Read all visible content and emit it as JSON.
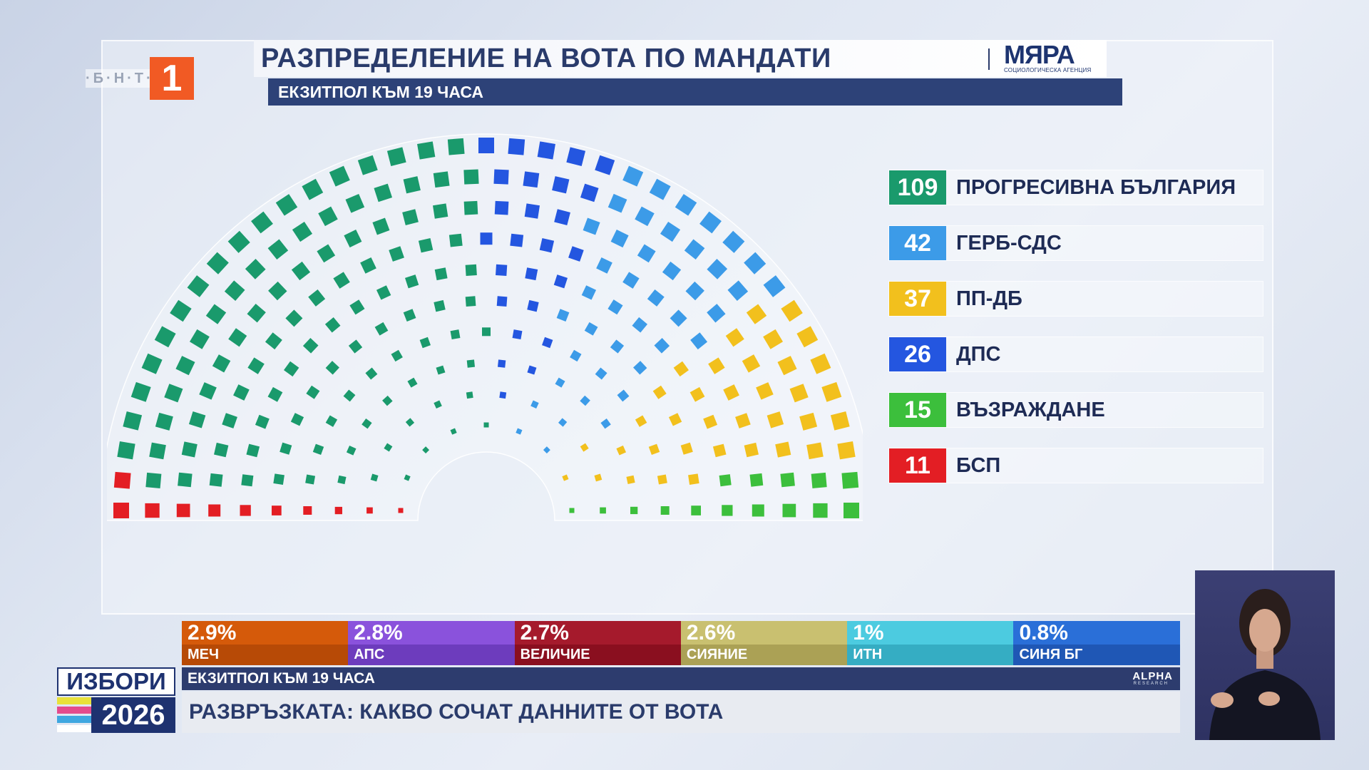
{
  "broadcaster": {
    "logo_letters": "·Б·Н·Т·",
    "logo_number": "1"
  },
  "header": {
    "title": "РАЗПРЕДЕЛЕНИЕ НА ВОТА ПО МАНДАТИ",
    "agency_name": "МЯРА",
    "agency_subtitle": "СОЦИОЛОГИЧЕСКА АГЕНЦИЯ",
    "subtitle": "ЕКЗИТПОЛ КЪМ 19 ЧАСА"
  },
  "parties": [
    {
      "seats": "109",
      "name": "ПРОГРЕСИВНА БЪЛГАРИЯ",
      "color": "#1a9a6c"
    },
    {
      "seats": "42",
      "name": "ГЕРБ-СДС",
      "color": "#3c9be8"
    },
    {
      "seats": "37",
      "name": "ПП-ДБ",
      "color": "#f2c01d"
    },
    {
      "seats": "26",
      "name": "ДПС",
      "color": "#2456e0"
    },
    {
      "seats": "15",
      "name": "ВЪЗРАЖДАНЕ",
      "color": "#3cbf3c"
    },
    {
      "seats": "11",
      "name": "БСП",
      "color": "#e31e24"
    }
  ],
  "other_results": [
    {
      "percent": "2.9%",
      "name": "МЕЧ",
      "color_top": "#d55a0a",
      "color_bottom": "#b74a06"
    },
    {
      "percent": "2.8%",
      "name": "АПС",
      "color_top": "#8a52dc",
      "color_bottom": "#6d3cbd"
    },
    {
      "percent": "2.7%",
      "name": "ВЕЛИЧИЕ",
      "color_top": "#a51a2c",
      "color_bottom": "#8a0f1f"
    },
    {
      "percent": "2.6%",
      "name": "СИЯНИЕ",
      "color_top": "#c9c070",
      "color_bottom": "#aba155"
    },
    {
      "percent": "1%",
      "name": "ИТН",
      "color_top": "#4ccbe0",
      "color_bottom": "#35adc3"
    },
    {
      "percent": "0.8%",
      "name": "СИНЯ БГ",
      "color_top": "#2a6fd8",
      "color_bottom": "#1f57b5"
    }
  ],
  "elections": {
    "label": "ИЗБОРИ",
    "year": "2026"
  },
  "ticker": {
    "label": "ЕКЗИТПОЛ КЪМ 19 ЧАСА",
    "source": "ALPHA",
    "source_sub": "RESEARCH",
    "headline": "РАЗВРЪЗКАТА: КАКВО СОЧАТ ДАННИТЕ ОТ ВОТА"
  }
}
